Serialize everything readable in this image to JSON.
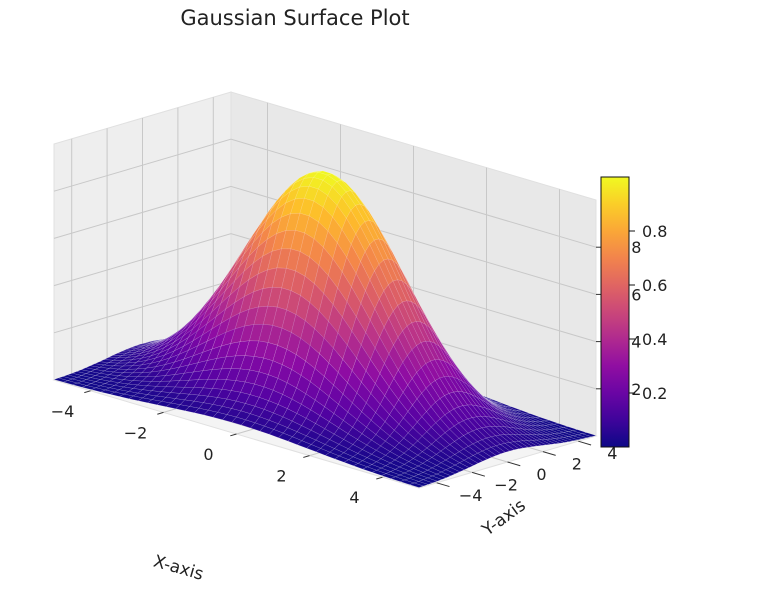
{
  "chart_data": {
    "type": "surface",
    "title": "Gaussian Surface Plot",
    "function": "z = exp(-(x^2 + y^2) / 8)",
    "xlabel": "X-axis",
    "ylabel": "Y-axis",
    "zlabel": "",
    "xlim": [
      -5,
      5
    ],
    "ylim": [
      -5,
      5
    ],
    "zlim": [
      0.0,
      1.0
    ],
    "grid_points": 40,
    "xticks": [
      "−4",
      "−2",
      "0",
      "2",
      "4"
    ],
    "yticks": [
      "−4",
      "−2",
      "0",
      "2",
      "4"
    ],
    "zticks": [
      "0.2",
      "0.4",
      "0.6",
      "0.8"
    ],
    "colormap": "plasma",
    "colorbar": {
      "range": [
        0.0,
        1.0
      ],
      "ticks": [
        "0.2",
        "0.4",
        "0.6",
        "0.8"
      ]
    },
    "grid": true
  }
}
